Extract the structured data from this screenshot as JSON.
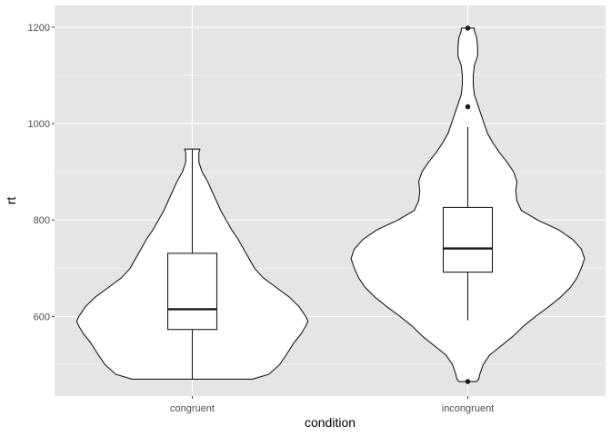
{
  "chart_data": {
    "type": "violin",
    "xlabel": "condition",
    "ylabel": "rt",
    "categories": [
      "congruent",
      "incongruent"
    ],
    "ylim": [
      435,
      1245
    ],
    "y_ticks": [
      600,
      800,
      1000,
      1200
    ],
    "y_tick_labels": [
      "600",
      "800",
      "1000",
      "1200"
    ],
    "y_minor_ticks": [
      500,
      700,
      900,
      1100
    ],
    "grid": true,
    "colors": {
      "panel_background": "#e5e5e5",
      "grid": "#ffffff",
      "violin_fill": "#ffffff",
      "line": "#1a1a1a",
      "outlier": "#1a1a1a"
    },
    "groups": [
      {
        "category": "congruent",
        "violin_density": [
          [
            470,
            0.55
          ],
          [
            480,
            0.7
          ],
          [
            500,
            0.8
          ],
          [
            520,
            0.86
          ],
          [
            545,
            0.93
          ],
          [
            565,
            1.0
          ],
          [
            580,
            1.04
          ],
          [
            590,
            1.06
          ],
          [
            600,
            1.04
          ],
          [
            620,
            0.98
          ],
          [
            640,
            0.89
          ],
          [
            660,
            0.77
          ],
          [
            680,
            0.65
          ],
          [
            700,
            0.57
          ],
          [
            720,
            0.52
          ],
          [
            740,
            0.47
          ],
          [
            760,
            0.42
          ],
          [
            780,
            0.36
          ],
          [
            800,
            0.31
          ],
          [
            820,
            0.26
          ],
          [
            840,
            0.22
          ],
          [
            860,
            0.18
          ],
          [
            880,
            0.14
          ],
          [
            900,
            0.09
          ],
          [
            920,
            0.06
          ],
          [
            940,
            0.06
          ],
          [
            947,
            0.07
          ]
        ],
        "box": {
          "q1": 573,
          "median": 615,
          "q3": 731,
          "whisker_low": 470,
          "whisker_high": 947
        },
        "outliers": []
      },
      {
        "category": "incongruent",
        "violin_density": [
          [
            465,
            0.08
          ],
          [
            470,
            0.1
          ],
          [
            480,
            0.11
          ],
          [
            500,
            0.14
          ],
          [
            520,
            0.2
          ],
          [
            540,
            0.31
          ],
          [
            560,
            0.42
          ],
          [
            580,
            0.51
          ],
          [
            600,
            0.62
          ],
          [
            620,
            0.74
          ],
          [
            640,
            0.85
          ],
          [
            660,
            0.94
          ],
          [
            680,
            1.0
          ],
          [
            700,
            1.04
          ],
          [
            720,
            1.07
          ],
          [
            740,
            1.04
          ],
          [
            760,
            0.96
          ],
          [
            780,
            0.83
          ],
          [
            800,
            0.64
          ],
          [
            820,
            0.49
          ],
          [
            840,
            0.45
          ],
          [
            860,
            0.44
          ],
          [
            880,
            0.45
          ],
          [
            900,
            0.42
          ],
          [
            920,
            0.36
          ],
          [
            940,
            0.29
          ],
          [
            960,
            0.23
          ],
          [
            980,
            0.18
          ],
          [
            1000,
            0.15
          ],
          [
            1020,
            0.12
          ],
          [
            1040,
            0.09
          ],
          [
            1060,
            0.06
          ],
          [
            1080,
            0.05
          ],
          [
            1100,
            0.05
          ],
          [
            1120,
            0.06
          ],
          [
            1140,
            0.09
          ],
          [
            1160,
            0.09
          ],
          [
            1180,
            0.08
          ],
          [
            1192,
            0.06
          ],
          [
            1198,
            0.06
          ]
        ],
        "box": {
          "q1": 692,
          "median": 741,
          "q3": 826,
          "whisker_low": 592,
          "whisker_high": 993
        },
        "outliers": [
          465,
          1035,
          1198
        ]
      }
    ]
  }
}
